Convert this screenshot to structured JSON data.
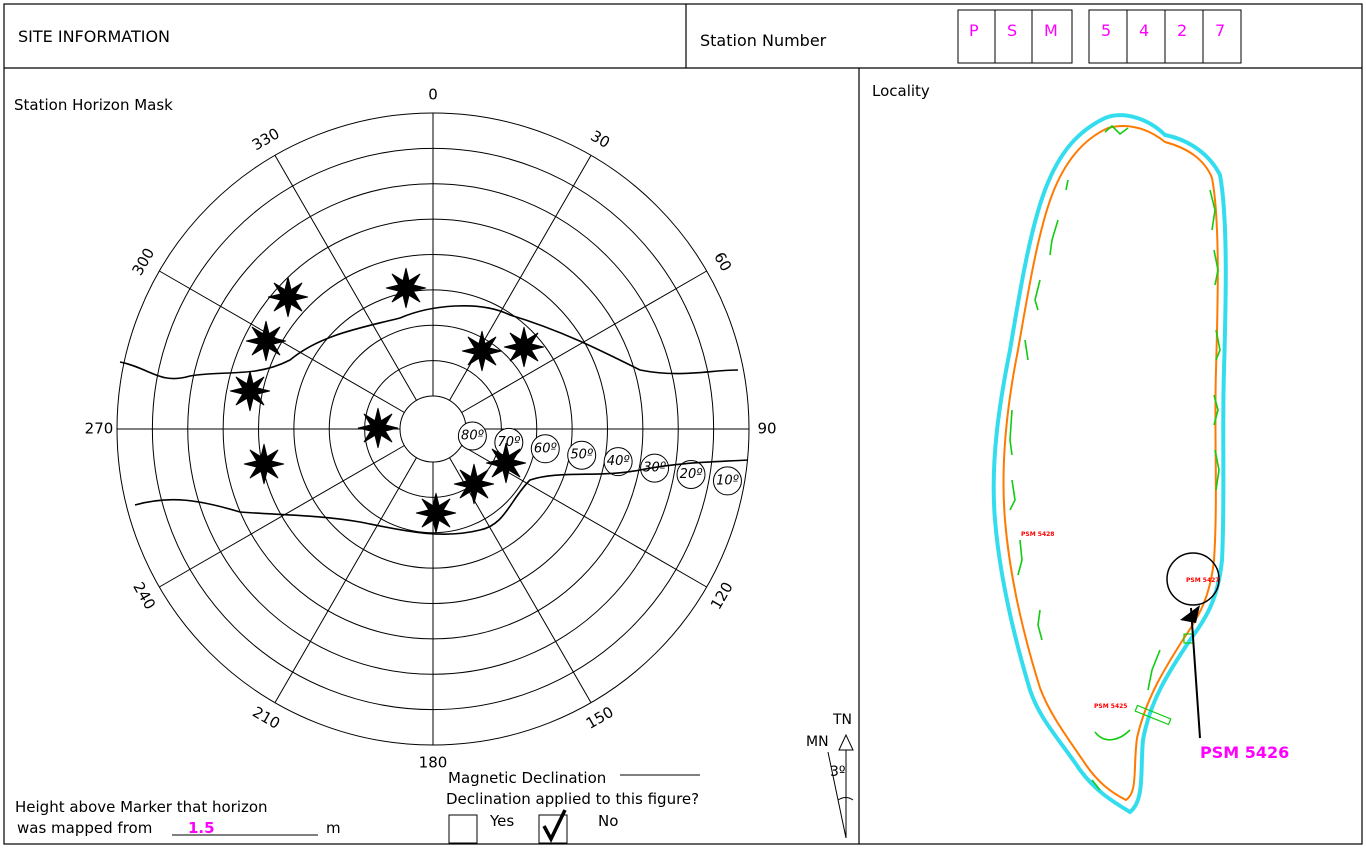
{
  "header": {
    "title": "SITE INFORMATION",
    "station_number_label": "Station Number",
    "station_letters": [
      "P",
      "S",
      "M"
    ],
    "station_digits": [
      "5",
      "4",
      "2",
      "7"
    ]
  },
  "mask": {
    "title": "Station Horizon Mask",
    "azimuth_labels": [
      "0",
      "30",
      "60",
      "90",
      "120",
      "150",
      "180",
      "210",
      "240",
      "270",
      "300",
      "330"
    ],
    "elevation_labels": [
      "80º",
      "70º",
      "60º",
      "50º",
      "40º",
      "30º",
      "20º",
      "10º"
    ]
  },
  "declination": {
    "magnetic_label": "Magnetic Declination",
    "applied_question": "Declination applied to this figure?",
    "yes_label": "Yes",
    "no_label": "No",
    "yes_checked": false,
    "no_checked": true,
    "tn_label": "TN",
    "mn_label": "MN",
    "angle_label": "3º"
  },
  "height": {
    "line1": "Height above Marker that horizon",
    "line2_prefix": "was mapped from",
    "value": "1.5",
    "unit": "m"
  },
  "locality": {
    "title": "Locality",
    "marks": [
      "PSM 5428",
      "PSM 5427",
      "PSM 5425"
    ],
    "callout": "PSM 5426"
  },
  "colors": {
    "magenta": "#ff00ff",
    "coast_outer": "#33ddee",
    "coast_inner": "#ff7a00",
    "vegetation": "#11cc11",
    "mark_red": "#ff0000"
  }
}
